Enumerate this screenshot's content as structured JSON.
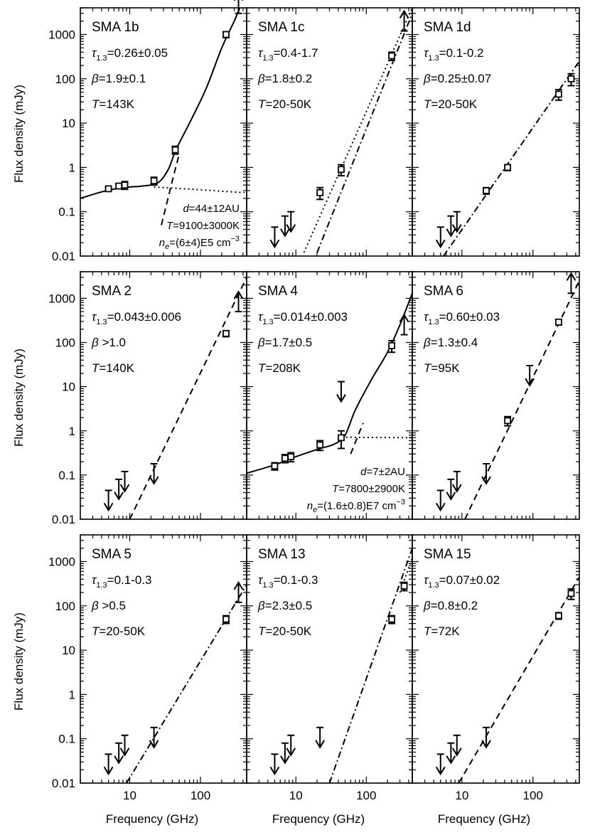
{
  "figure": {
    "y_axis_label": "Flux density (mJy)",
    "x_axis_label": "Frequency (GHz)",
    "x_tick_labels": [
      "10",
      "100"
    ],
    "y_tick_labels": [
      "0.01",
      "0.1",
      "1",
      "10",
      "100",
      "1000"
    ]
  },
  "chart_data": [
    {
      "type": "scatter",
      "title": "SMA 1b",
      "params": [
        "τ1.3=0.26±0.05",
        "β=1.9±0.1",
        "T=143K"
      ],
      "annotations": [
        "d=44±12AU",
        "T=9100±3000K",
        "ne=(6±4)E5 cm−3"
      ],
      "xlim": [
        2,
        450
      ],
      "ylim": [
        0.01,
        4000
      ],
      "points": [
        {
          "x": 5,
          "y": 0.33,
          "err": 0.03
        },
        {
          "x": 7,
          "y": 0.38,
          "err": 0.04
        },
        {
          "x": 8.5,
          "y": 0.4,
          "err": 0.08
        },
        {
          "x": 22,
          "y": 0.5,
          "err": 0.1
        },
        {
          "x": 44,
          "y": 2.5,
          "err": 0.5
        },
        {
          "x": 230,
          "y": 1000,
          "err": 150
        }
      ],
      "upper_limits": [],
      "lower_limits": [
        {
          "x": 345,
          "y": 3000
        }
      ],
      "curves": [
        {
          "style": "solid",
          "points": [
            [
              2,
              0.2
            ],
            [
              4,
              0.28
            ],
            [
              8,
              0.35
            ],
            [
              15,
              0.38
            ],
            [
              25,
              0.45
            ],
            [
              35,
              0.9
            ],
            [
              45,
              2.5
            ],
            [
              70,
              10
            ],
            [
              120,
              60
            ],
            [
              200,
              500
            ],
            [
              300,
              2000
            ],
            [
              360,
              4000
            ]
          ]
        },
        {
          "style": "dotted",
          "points": [
            [
              22,
              0.36
            ],
            [
              60,
              0.33
            ],
            [
              150,
              0.3
            ],
            [
              420,
              0.27
            ]
          ]
        },
        {
          "style": "dashed",
          "points": [
            [
              28,
              0.05
            ],
            [
              40,
              0.5
            ],
            [
              50,
              2
            ]
          ]
        }
      ]
    },
    {
      "type": "scatter",
      "title": "SMA 1c",
      "params": [
        "τ1.3=0.4-1.7",
        "β=1.8±0.2",
        "T=20-50K"
      ],
      "annotations": [],
      "xlim": [
        2,
        450
      ],
      "ylim": [
        0.01,
        4000
      ],
      "points": [
        {
          "x": 22,
          "y": 0.27,
          "err": 0.08
        },
        {
          "x": 44,
          "y": 0.9,
          "err": 0.25
        },
        {
          "x": 230,
          "y": 330,
          "err": 70
        }
      ],
      "upper_limits": [
        {
          "x": 5,
          "y": 0.045
        },
        {
          "x": 7,
          "y": 0.08
        },
        {
          "x": 8.5,
          "y": 0.1
        }
      ],
      "lower_limits": [
        {
          "x": 345,
          "y": 1200
        }
      ],
      "curves": [
        {
          "style": "dotted",
          "points": [
            [
              13,
              0.012
            ],
            [
              450,
              4000
            ]
          ]
        },
        {
          "style": "dashdot",
          "points": [
            [
              20,
              0.012
            ],
            [
              450,
              3000
            ]
          ]
        }
      ]
    },
    {
      "type": "scatter",
      "title": "SMA 1d",
      "params": [
        "τ1.3=0.1-0.2",
        "β=0.25±0.07",
        "T=20-50K"
      ],
      "annotations": [],
      "xlim": [
        2,
        450
      ],
      "ylim": [
        0.01,
        4000
      ],
      "points": [
        {
          "x": 22,
          "y": 0.3,
          "err": 0.05
        },
        {
          "x": 44,
          "y": 1,
          "err": 0.15
        },
        {
          "x": 230,
          "y": 45,
          "err": 12
        },
        {
          "x": 345,
          "y": 100,
          "err": 30
        }
      ],
      "upper_limits": [
        {
          "x": 5,
          "y": 0.045
        },
        {
          "x": 7,
          "y": 0.08
        },
        {
          "x": 8.5,
          "y": 0.1
        }
      ],
      "lower_limits": [],
      "curves": [
        {
          "style": "dashdot",
          "points": [
            [
              5.5,
              0.01
            ],
            [
              450,
              250
            ]
          ]
        }
      ]
    },
    {
      "type": "scatter",
      "title": "SMA 2",
      "params": [
        "τ1.3=0.043±0.006",
        "β >1.0",
        "T=140K"
      ],
      "annotations": [],
      "xlim": [
        2,
        450
      ],
      "ylim": [
        0.01,
        4000
      ],
      "points": [
        {
          "x": 230,
          "y": 160,
          "err": 25
        }
      ],
      "upper_limits": [
        {
          "x": 5,
          "y": 0.045
        },
        {
          "x": 7,
          "y": 0.08
        },
        {
          "x": 8.5,
          "y": 0.12
        },
        {
          "x": 22,
          "y": 0.18
        }
      ],
      "lower_limits": [
        {
          "x": 345,
          "y": 500
        }
      ],
      "curves": [
        {
          "style": "dashed",
          "points": [
            [
              10,
              0.01
            ],
            [
              450,
              3000
            ]
          ]
        }
      ]
    },
    {
      "type": "scatter",
      "title": "SMA 4",
      "params": [
        "τ1.3=0.014±0.003",
        "β=1.7±0.5",
        "T=208K"
      ],
      "annotations": [
        "d=7±2AU",
        "T=7800±2900K",
        "ne=(1.6±0.8)E7 cm−3"
      ],
      "xlim": [
        2,
        450
      ],
      "ylim": [
        0.01,
        4000
      ],
      "points": [
        {
          "x": 5,
          "y": 0.16,
          "err": 0.03
        },
        {
          "x": 7,
          "y": 0.24,
          "err": 0.05
        },
        {
          "x": 8.5,
          "y": 0.26,
          "err": 0.06
        },
        {
          "x": 22,
          "y": 0.48,
          "err": 0.12
        },
        {
          "x": 44,
          "y": 0.7,
          "err": 0.3
        },
        {
          "x": 230,
          "y": 85,
          "err": 25
        }
      ],
      "upper_limits": [
        {
          "x": 44,
          "y": 13
        }
      ],
      "lower_limits": [
        {
          "x": 345,
          "y": 150
        }
      ],
      "curves": [
        {
          "style": "solid",
          "points": [
            [
              2,
              0.11
            ],
            [
              5,
              0.17
            ],
            [
              10,
              0.26
            ],
            [
              20,
              0.38
            ],
            [
              35,
              0.5
            ],
            [
              50,
              0.8
            ],
            [
              70,
              3
            ],
            [
              120,
              15
            ],
            [
              200,
              60
            ],
            [
              300,
              250
            ],
            [
              450,
              1300
            ]
          ]
        },
        {
          "style": "dotted",
          "points": [
            [
              45,
              0.72
            ],
            [
              100,
              0.71
            ],
            [
              450,
              0.7
            ]
          ]
        },
        {
          "style": "dashed",
          "points": [
            [
              60,
              0.3
            ],
            [
              90,
              1.5
            ]
          ]
        }
      ]
    },
    {
      "type": "scatter",
      "title": "SMA 6",
      "params": [
        "τ1.3=0.60±0.03",
        "β=1.3±0.4",
        "T=95K"
      ],
      "annotations": [],
      "xlim": [
        2,
        450
      ],
      "ylim": [
        0.01,
        4000
      ],
      "points": [
        {
          "x": 44,
          "y": 1.7,
          "err": 0.4
        },
        {
          "x": 230,
          "y": 290,
          "err": 40
        }
      ],
      "upper_limits": [
        {
          "x": 5,
          "y": 0.045
        },
        {
          "x": 7,
          "y": 0.08
        },
        {
          "x": 8.5,
          "y": 0.12
        },
        {
          "x": 22,
          "y": 0.18
        },
        {
          "x": 90,
          "y": 30
        }
      ],
      "lower_limits": [
        {
          "x": 345,
          "y": 1300
        }
      ],
      "curves": [
        {
          "style": "dashed",
          "points": [
            [
              11,
              0.01
            ],
            [
              450,
              2500
            ]
          ]
        }
      ]
    },
    {
      "type": "scatter",
      "title": "SMA 5",
      "params": [
        "τ1.3=0.1-0.3",
        "β >0.5",
        "T=20-50K"
      ],
      "annotations": [],
      "xlim": [
        2,
        450
      ],
      "ylim": [
        0.01,
        4000
      ],
      "points": [
        {
          "x": 230,
          "y": 50,
          "err": 10
        }
      ],
      "upper_limits": [
        {
          "x": 5,
          "y": 0.045
        },
        {
          "x": 7,
          "y": 0.08
        },
        {
          "x": 8.5,
          "y": 0.12
        },
        {
          "x": 22,
          "y": 0.18
        }
      ],
      "lower_limits": [
        {
          "x": 345,
          "y": 120
        }
      ],
      "curves": [
        {
          "style": "dashdot",
          "points": [
            [
              9,
              0.01
            ],
            [
              450,
              300
            ]
          ]
        }
      ]
    },
    {
      "type": "scatter",
      "title": "SMA 13",
      "params": [
        "τ1.3=0.1-0.3",
        "β=2.3±0.5",
        "T=20-50K"
      ],
      "annotations": [],
      "xlim": [
        2,
        450
      ],
      "ylim": [
        0.01,
        4000
      ],
      "points": [
        {
          "x": 230,
          "y": 50,
          "err": 10
        },
        {
          "x": 345,
          "y": 280,
          "err": 60
        }
      ],
      "upper_limits": [
        {
          "x": 5,
          "y": 0.045
        },
        {
          "x": 7,
          "y": 0.08
        },
        {
          "x": 8.5,
          "y": 0.12
        },
        {
          "x": 22,
          "y": 0.18
        }
      ],
      "lower_limits": [],
      "curves": [
        {
          "style": "dashdot",
          "points": [
            [
              30,
              0.01
            ],
            [
              450,
              2000
            ]
          ]
        },
        {
          "style": "dotted",
          "points": [
            [
              300,
              200
            ],
            [
              450,
              1200
            ]
          ]
        }
      ]
    },
    {
      "type": "scatter",
      "title": "SMA 15",
      "params": [
        "τ1.3=0.07±0.02",
        "β=0.8±0.2",
        "T=72K"
      ],
      "annotations": [],
      "xlim": [
        2,
        450
      ],
      "ylim": [
        0.01,
        4000
      ],
      "points": [
        {
          "x": 230,
          "y": 60,
          "err": 10
        },
        {
          "x": 345,
          "y": 190,
          "err": 50
        }
      ],
      "upper_limits": [
        {
          "x": 5,
          "y": 0.045
        },
        {
          "x": 7,
          "y": 0.08
        },
        {
          "x": 8.5,
          "y": 0.12
        },
        {
          "x": 22,
          "y": 0.18
        }
      ],
      "lower_limits": [],
      "curves": [
        {
          "style": "dashed",
          "points": [
            [
              9,
              0.01
            ],
            [
              450,
              450
            ]
          ]
        }
      ]
    }
  ]
}
